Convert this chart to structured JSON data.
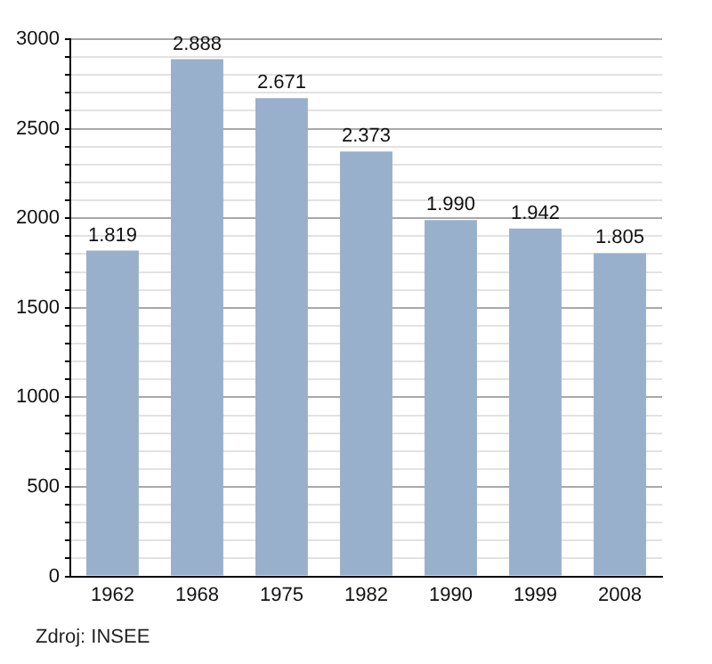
{
  "chart_data": {
    "type": "bar",
    "categories": [
      "1962",
      "1968",
      "1975",
      "1982",
      "1990",
      "1999",
      "2008"
    ],
    "values": [
      1819,
      2888,
      2671,
      2373,
      1990,
      1942,
      1805
    ],
    "value_labels": [
      "1.819",
      "2.888",
      "2.671",
      "2.373",
      "1.990",
      "1.942",
      "1.805"
    ],
    "color": "#98b0cb",
    "ylim": [
      0,
      3000
    ],
    "yticks": [
      0,
      {
        "value": 100,
        "label": null
      },
      {
        "value": 200,
        "label": null
      },
      {
        "value": 300,
        "label": null
      },
      {
        "value": 400,
        "label": null
      },
      500,
      {
        "value": 600,
        "label": null
      },
      {
        "value": 700,
        "label": null
      },
      {
        "value": 800,
        "label": null
      },
      {
        "value": 900,
        "label": null
      },
      1000,
      {
        "value": 1100,
        "label": null
      },
      {
        "value": 1200,
        "label": null
      },
      {
        "value": 1300,
        "label": null
      },
      {
        "value": 1400,
        "label": null
      },
      1500,
      {
        "value": 1600,
        "label": null
      },
      {
        "value": 1700,
        "label": null
      },
      {
        "value": 1800,
        "label": null
      },
      {
        "value": 1900,
        "label": null
      },
      2000,
      {
        "value": 2100,
        "label": null
      },
      {
        "value": 2200,
        "label": null
      },
      {
        "value": 2300,
        "label": null
      },
      {
        "value": 2400,
        "label": null
      },
      2500,
      {
        "value": 2600,
        "label": null
      },
      {
        "value": 2700,
        "label": null
      },
      {
        "value": 2800,
        "label": null
      },
      {
        "value": 2900,
        "label": null
      },
      3000
    ],
    "grid": "y",
    "legend": false,
    "annotations": [
      "Zdroj: INSEE"
    ]
  }
}
